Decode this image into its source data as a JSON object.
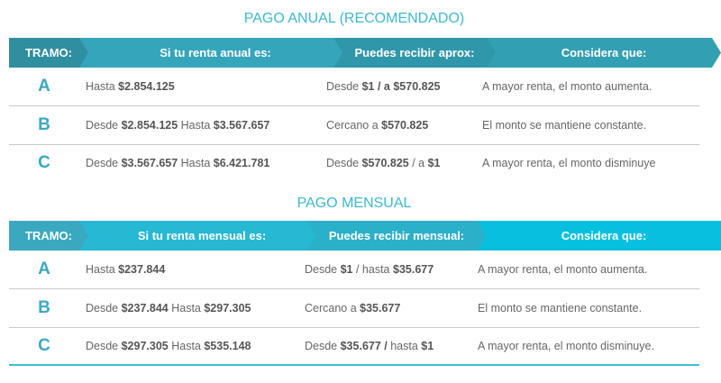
{
  "tables": [
    {
      "title": "PAGO ANUAL (RECOMENDADO)",
      "colors": [
        "#2f8fa1",
        "#35a5bb",
        "#3097ab",
        "#339fb3"
      ],
      "headers": [
        "TRAMO:",
        "Si tu renta anual es:",
        "Puedes recibir aprox:",
        "Considera que:"
      ],
      "rows": [
        {
          "tramo": "A",
          "renta": [
            {
              "t": "Hasta "
            },
            {
              "t": "$2.854.125",
              "b": true
            }
          ],
          "recibir": [
            {
              "t": "Desde "
            },
            {
              "t": "$1 / a $570.825",
              "b": true
            }
          ],
          "considera": "A mayor renta, el monto aumenta."
        },
        {
          "tramo": "B",
          "renta": [
            {
              "t": "Desde "
            },
            {
              "t": "$2.854.125",
              "b": true
            },
            {
              "t": " Hasta "
            },
            {
              "t": "$3.567.657",
              "b": true
            }
          ],
          "recibir": [
            {
              "t": "Cercano a "
            },
            {
              "t": "$570.825",
              "b": true
            }
          ],
          "considera": "El monto se mantiene constante."
        },
        {
          "tramo": "C",
          "renta": [
            {
              "t": "Desde "
            },
            {
              "t": "$3.567.657",
              "b": true
            },
            {
              "t": " Hasta "
            },
            {
              "t": "$6.421.781",
              "b": true
            }
          ],
          "recibir": [
            {
              "t": "Desde "
            },
            {
              "t": "$570.825",
              "b": true
            },
            {
              "t": " / a "
            },
            {
              "t": "$1",
              "b": true
            }
          ],
          "considera": "A mayor renta, el monto disminuye"
        }
      ]
    },
    {
      "title": "PAGO MENSUAL",
      "colors": [
        "#3aa9c0",
        "#27b8d3",
        "#2bb0c9",
        "#07c0e0"
      ],
      "headers": [
        "TRAMO:",
        "Si tu renta mensual es:",
        "Puedes recibir mensual:",
        "Considera que:"
      ],
      "rows": [
        {
          "tramo": "A",
          "renta": [
            {
              "t": "Hasta "
            },
            {
              "t": "$237.844",
              "b": true
            }
          ],
          "recibir": [
            {
              "t": "Desde "
            },
            {
              "t": "$1",
              "b": true
            },
            {
              "t": " / hasta "
            },
            {
              "t": "$35.677",
              "b": true
            }
          ],
          "considera": "A mayor renta, el monto aumenta."
        },
        {
          "tramo": "B",
          "renta": [
            {
              "t": "Desde "
            },
            {
              "t": "$237.844",
              "b": true
            },
            {
              "t": " Hasta "
            },
            {
              "t": "$297.305",
              "b": true
            }
          ],
          "recibir": [
            {
              "t": "Cercano a "
            },
            {
              "t": "$35.677",
              "b": true
            }
          ],
          "considera": "El monto se mantiene constante."
        },
        {
          "tramo": "C",
          "renta": [
            {
              "t": "Desde "
            },
            {
              "t": "$297.305",
              "b": true
            },
            {
              "t": " Hasta "
            },
            {
              "t": "$535.148",
              "b": true
            }
          ],
          "recibir": [
            {
              "t": "Desde "
            },
            {
              "t": "$35.677 / ",
              "b": true
            },
            {
              "t": "hasta "
            },
            {
              "t": "$1",
              "b": true
            }
          ],
          "considera": "A mayor renta, el monto disminuye."
        }
      ]
    }
  ]
}
